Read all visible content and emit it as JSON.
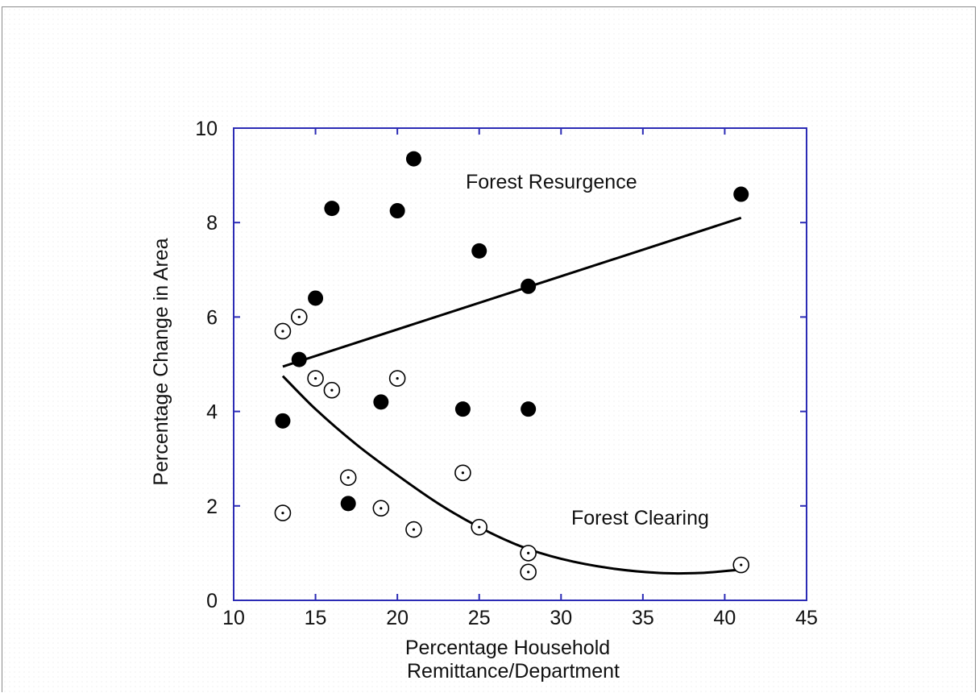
{
  "chart_data": {
    "type": "scatter",
    "xlabel_lines": [
      "Percentage Household",
      "Remittance/Department"
    ],
    "ylabel": "Percentage Change in Area",
    "xlim": [
      10,
      45
    ],
    "ylim": [
      0,
      10
    ],
    "xticks": [
      "10",
      "15",
      "20",
      "25",
      "30",
      "35",
      "40",
      "45"
    ],
    "yticks": [
      "0",
      "2",
      "4",
      "6",
      "8",
      "10"
    ],
    "grid": false,
    "axis_color": "#2b2bb5",
    "annotations": [
      "Forest Resurgence",
      "Forest Clearing"
    ],
    "series": [
      {
        "marker": "filled-circle",
        "color": "#000000",
        "points": [
          [
            21,
            9.35
          ],
          [
            16,
            8.3
          ],
          [
            20,
            8.25
          ],
          [
            41,
            8.6
          ],
          [
            25,
            7.4
          ],
          [
            28,
            6.65
          ],
          [
            15,
            6.4
          ],
          [
            14,
            5.1
          ],
          [
            13,
            3.8
          ],
          [
            19,
            4.2
          ],
          [
            24,
            4.05
          ],
          [
            28,
            4.05
          ],
          [
            17,
            2.05
          ]
        ]
      },
      {
        "marker": "open-circle-dot",
        "color": "#000000",
        "points": [
          [
            13,
            5.7
          ],
          [
            14,
            6.0
          ],
          [
            15,
            4.7
          ],
          [
            16,
            4.45
          ],
          [
            20,
            4.7
          ],
          [
            17,
            2.6
          ],
          [
            24,
            2.7
          ],
          [
            13,
            1.85
          ],
          [
            19,
            1.95
          ],
          [
            21,
            1.5
          ],
          [
            25,
            1.55
          ],
          [
            28,
            1.0
          ],
          [
            28,
            0.6
          ],
          [
            41,
            0.75
          ]
        ]
      }
    ],
    "trend_lines": [
      {
        "label": "Forest Resurgence",
        "kind": "linear",
        "points": [
          [
            13,
            4.95
          ],
          [
            41,
            8.1
          ]
        ]
      },
      {
        "label": "Forest Clearing",
        "kind": "curve",
        "points": [
          [
            13,
            4.75
          ],
          [
            15,
            4.05
          ],
          [
            17.5,
            3.3
          ],
          [
            20,
            2.65
          ],
          [
            22.5,
            2.05
          ],
          [
            25,
            1.55
          ],
          [
            27.5,
            1.15
          ],
          [
            30,
            0.88
          ],
          [
            33,
            0.68
          ],
          [
            36,
            0.58
          ],
          [
            38.5,
            0.58
          ],
          [
            41,
            0.65
          ]
        ]
      }
    ]
  }
}
